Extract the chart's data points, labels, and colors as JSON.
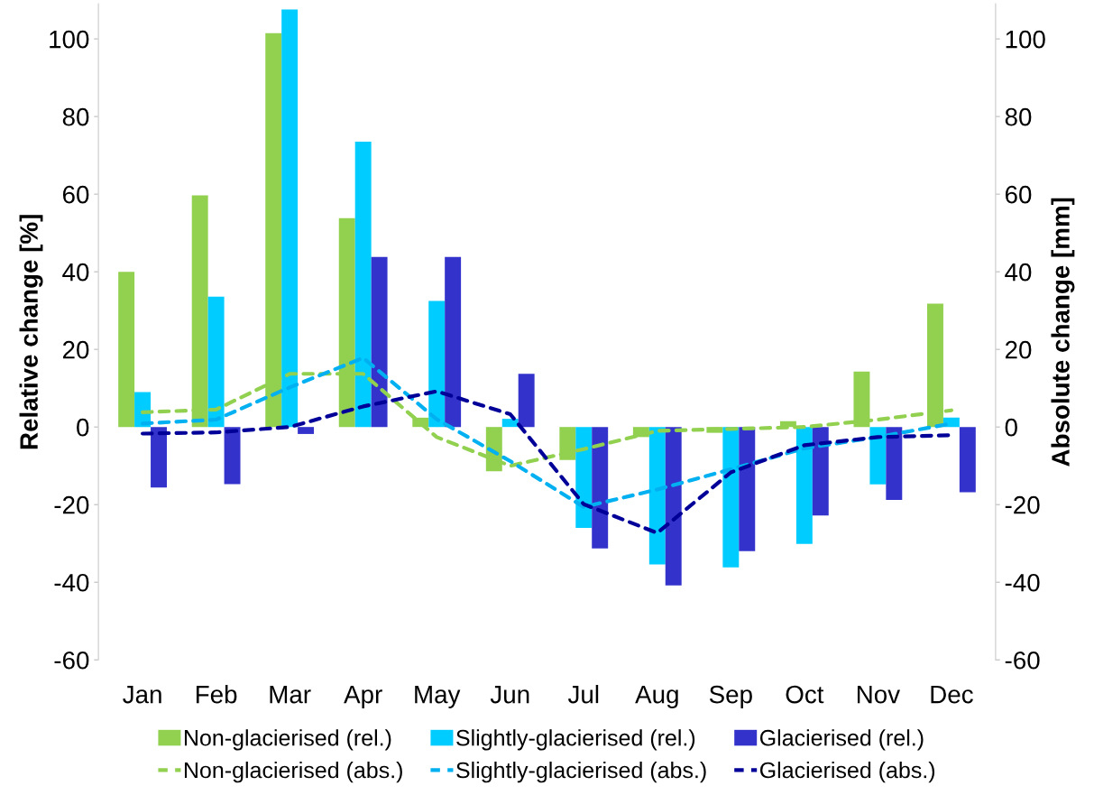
{
  "chart_data": {
    "type": "bar",
    "ylabel": "Relative change [%]",
    "y2label": "Absolute change [mm]",
    "categories": [
      "Jan",
      "Feb",
      "Mar",
      "Apr",
      "May",
      "Jun",
      "Jul",
      "Aug",
      "Sep",
      "Oct",
      "Nov",
      "Dec"
    ],
    "series": [
      {
        "name": "Non-glacierised (rel.)",
        "color": "#92d050",
        "values": [
          40,
          59.7,
          101.5,
          53.8,
          2.4,
          -11.4,
          -8.5,
          -2.6,
          -1.5,
          1.5,
          14.3,
          31.8
        ]
      },
      {
        "name": "Slightly-glacierised (rel.)",
        "color": "#00ccff",
        "values": [
          9,
          33.6,
          107.6,
          73.5,
          32.5,
          2.1,
          -26,
          -35.4,
          -36.2,
          -30.1,
          -14.8,
          2.4
        ]
      },
      {
        "name": "Glacierised (rel.)",
        "color": "#3333cc",
        "values": [
          -15.6,
          -14.7,
          -1.8,
          43.8,
          43.8,
          13.7,
          -31.3,
          -40.8,
          -32,
          -22.8,
          -18.8,
          -16.8
        ]
      },
      {
        "name": "Non-glacierised (abs.)",
        "type": "line",
        "axis": "y2",
        "line_style": "dashed",
        "color": "#92d050",
        "values": [
          3.8,
          4.5,
          13.7,
          13.7,
          -2.6,
          -10,
          -5.7,
          -1,
          -0.5,
          0,
          1.9,
          4.3
        ]
      },
      {
        "name": "Slightly-glacierised (abs.)",
        "type": "line",
        "axis": "y2",
        "line_style": "dashed",
        "color": "#00b0f0",
        "values": [
          0.9,
          1.9,
          10.2,
          17.8,
          2,
          -8.8,
          -20.6,
          -16.1,
          -10.9,
          -5.5,
          -2.6,
          0.9
        ]
      },
      {
        "name": "Glacierised (abs.)",
        "type": "line",
        "axis": "y2",
        "line_style": "dashed",
        "color": "#000099",
        "values": [
          -1.7,
          -1.4,
          0,
          5.3,
          9.2,
          3.3,
          -19.9,
          -27.3,
          -11.7,
          -4.7,
          -2.6,
          -2.1
        ]
      }
    ],
    "ylim": [
      -60,
      109
    ],
    "yticks": [
      -60,
      -40,
      -20,
      0,
      20,
      40,
      60,
      80,
      100
    ],
    "y2lim": [
      -60,
      109
    ],
    "y2ticks": [
      -60,
      -40,
      -20,
      0,
      20,
      40,
      60,
      80,
      100
    ],
    "grid": false,
    "legend": "bottom"
  }
}
